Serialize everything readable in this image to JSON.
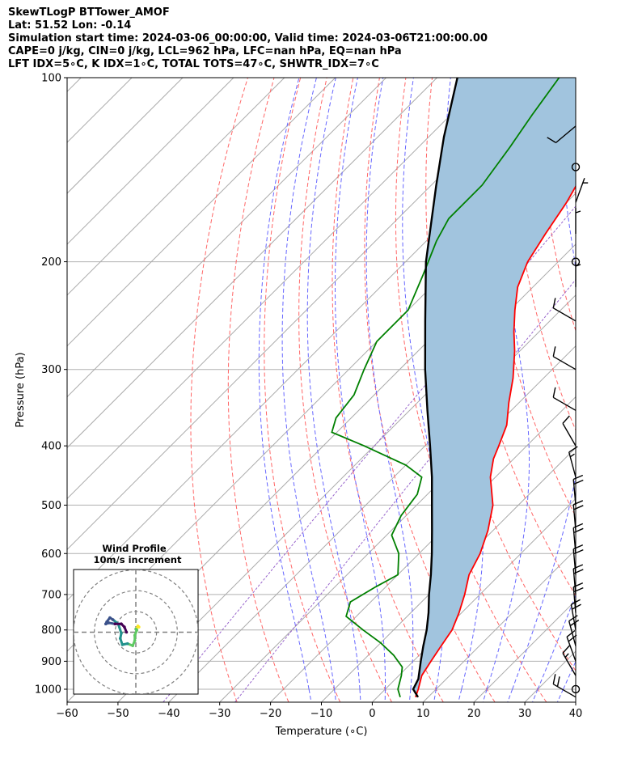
{
  "header": {
    "line1": "SkewTLogP BTTower_AMOF",
    "line2": "Lat: 51.52   Lon: -0.14",
    "line3": "Simulation start time: 2024-03-06_00:00:00, Valid time: 2024-03-06T21:00:00.00",
    "line4": "CAPE=0 j/kg, CIN=0 j/kg, LCL=962 hPa, LFC=nan hPa, EQ=nan hPa",
    "line5": "LFT IDX=5∘C, K IDX=1∘C, TOTAL TOTS=47∘C, SHWTR_IDX=7∘C"
  },
  "chart_data": [
    {
      "type": "line",
      "subtype": "skew-t log-p",
      "xlabel": "Temperature (∘C)",
      "ylabel": "Pressure (hPa)",
      "xlim": [
        -60,
        40
      ],
      "ylim": [
        1050,
        100
      ],
      "y_scale": "log",
      "x_ticks": [
        "−60",
        "−50",
        "−40",
        "−30",
        "−20",
        "−10",
        "0",
        "10",
        "20",
        "30",
        "40"
      ],
      "x_tick_values": [
        -60,
        -50,
        -40,
        -30,
        -20,
        -10,
        0,
        10,
        20,
        30,
        40
      ],
      "y_ticks": [
        "100",
        "200",
        "300",
        "400",
        "500",
        "600",
        "700",
        "800",
        "900",
        "1000"
      ],
      "y_tick_values": [
        100,
        200,
        300,
        400,
        500,
        600,
        700,
        800,
        900,
        1000
      ],
      "grid": true,
      "background_lines": {
        "dry_adiabats_color": "#ff6666",
        "moist_adiabats_color": "#6666ff",
        "skewed_isotherms_color": "#aaaaaa",
        "mixing_line_color": "#9966cc"
      },
      "cape_fill_color": "#a1c4de",
      "series": [
        {
          "role": "temperature",
          "color": "#ff0000",
          "points": [
            {
              "p": 1030,
              "t": 7.5
            },
            {
              "p": 1000,
              "t": 6.5
            },
            {
              "p": 950,
              "t": 4.5
            },
            {
              "p": 900,
              "t": 3.5
            },
            {
              "p": 850,
              "t": 2.5
            },
            {
              "p": 800,
              "t": 1.5
            },
            {
              "p": 750,
              "t": -0.5
            },
            {
              "p": 700,
              "t": -3
            },
            {
              "p": 650,
              "t": -6
            },
            {
              "p": 600,
              "t": -8
            },
            {
              "p": 550,
              "t": -11
            },
            {
              "p": 500,
              "t": -15
            },
            {
              "p": 450,
              "t": -21
            },
            {
              "p": 420,
              "t": -24
            },
            {
              "p": 400,
              "t": -25.5
            },
            {
              "p": 370,
              "t": -28
            },
            {
              "p": 340,
              "t": -32
            },
            {
              "p": 310,
              "t": -36
            },
            {
              "p": 280,
              "t": -41
            },
            {
              "p": 260,
              "t": -45
            },
            {
              "p": 240,
              "t": -49
            },
            {
              "p": 220,
              "t": -53
            },
            {
              "p": 200,
              "t": -56
            },
            {
              "p": 180,
              "t": -58
            },
            {
              "p": 160,
              "t": -60
            },
            {
              "p": 140,
              "t": -63
            },
            {
              "p": 120,
              "t": -69
            },
            {
              "p": 110,
              "t": -73
            },
            {
              "p": 100,
              "t": -77
            }
          ]
        },
        {
          "role": "dewpoint",
          "color": "#008000",
          "points": [
            {
              "p": 1030,
              "t": 4.5
            },
            {
              "p": 1000,
              "t": 2.5
            },
            {
              "p": 950,
              "t": 0.5
            },
            {
              "p": 920,
              "t": -1
            },
            {
              "p": 880,
              "t": -5
            },
            {
              "p": 840,
              "t": -10
            },
            {
              "p": 800,
              "t": -16
            },
            {
              "p": 760,
              "t": -22
            },
            {
              "p": 720,
              "t": -24
            },
            {
              "p": 680,
              "t": -22
            },
            {
              "p": 650,
              "t": -20
            },
            {
              "p": 600,
              "t": -24
            },
            {
              "p": 560,
              "t": -29
            },
            {
              "p": 520,
              "t": -31
            },
            {
              "p": 480,
              "t": -32
            },
            {
              "p": 450,
              "t": -34.5
            },
            {
              "p": 430,
              "t": -40
            },
            {
              "p": 400,
              "t": -52
            },
            {
              "p": 380,
              "t": -61
            },
            {
              "p": 360,
              "t": -63
            },
            {
              "p": 330,
              "t": -64
            },
            {
              "p": 300,
              "t": -67
            },
            {
              "p": 270,
              "t": -70
            },
            {
              "p": 240,
              "t": -70
            },
            {
              "p": 210,
              "t": -74
            },
            {
              "p": 185,
              "t": -78
            },
            {
              "p": 170,
              "t": -80
            },
            {
              "p": 150,
              "t": -80
            },
            {
              "p": 130,
              "t": -82
            },
            {
              "p": 115,
              "t": -84
            },
            {
              "p": 100,
              "t": -86
            }
          ]
        },
        {
          "role": "parcel profile",
          "color": "#000000",
          "points": [
            {
              "p": 1030,
              "t": 8
            },
            {
              "p": 1000,
              "t": 5.5
            },
            {
              "p": 962,
              "t": 4.5
            },
            {
              "p": 900,
              "t": 1.5
            },
            {
              "p": 850,
              "t": -1
            },
            {
              "p": 800,
              "t": -3.5
            },
            {
              "p": 750,
              "t": -6.5
            },
            {
              "p": 700,
              "t": -10
            },
            {
              "p": 650,
              "t": -13.5
            },
            {
              "p": 600,
              "t": -17.5
            },
            {
              "p": 550,
              "t": -22
            },
            {
              "p": 500,
              "t": -27
            },
            {
              "p": 450,
              "t": -32.5
            },
            {
              "p": 400,
              "t": -39
            },
            {
              "p": 350,
              "t": -46.5
            },
            {
              "p": 300,
              "t": -55
            },
            {
              "p": 250,
              "t": -64.5
            },
            {
              "p": 200,
              "t": -76
            },
            {
              "p": 150,
              "t": -89
            },
            {
              "p": 125,
              "t": -97
            },
            {
              "p": 100,
              "t": -106
            }
          ]
        }
      ],
      "wind_barbs": [
        {
          "p": 1030,
          "speed_kt": 20,
          "dir": 300
        },
        {
          "p": 1000,
          "speed_kt": 0,
          "dir": 0,
          "calm": true
        },
        {
          "p": 950,
          "speed_kt": 15,
          "dir": 330
        },
        {
          "p": 900,
          "speed_kt": 20,
          "dir": 340
        },
        {
          "p": 850,
          "speed_kt": 20,
          "dir": 345
        },
        {
          "p": 800,
          "speed_kt": 20,
          "dir": 350
        },
        {
          "p": 750,
          "speed_kt": 20,
          "dir": 355
        },
        {
          "p": 700,
          "speed_kt": 20,
          "dir": 355
        },
        {
          "p": 650,
          "speed_kt": 20,
          "dir": 355
        },
        {
          "p": 600,
          "speed_kt": 20,
          "dir": 355
        },
        {
          "p": 550,
          "speed_kt": 20,
          "dir": 355
        },
        {
          "p": 500,
          "speed_kt": 20,
          "dir": 355
        },
        {
          "p": 450,
          "speed_kt": 15,
          "dir": 345
        },
        {
          "p": 400,
          "speed_kt": 10,
          "dir": 330
        },
        {
          "p": 350,
          "speed_kt": 10,
          "dir": 300
        },
        {
          "p": 300,
          "speed_kt": 10,
          "dir": 300
        },
        {
          "p": 250,
          "speed_kt": 10,
          "dir": 300
        },
        {
          "p": 220,
          "speed_kt": 5,
          "dir": 360
        },
        {
          "p": 200,
          "speed_kt": 0,
          "dir": 0,
          "calm": true
        },
        {
          "p": 180,
          "speed_kt": 5,
          "dir": 360
        },
        {
          "p": 160,
          "speed_kt": 5,
          "dir": 20
        },
        {
          "p": 140,
          "speed_kt": 0,
          "dir": 0,
          "calm": true
        },
        {
          "p": 120,
          "speed_kt": 10,
          "dir": 230
        }
      ]
    },
    {
      "type": "scatter",
      "subtype": "hodograph",
      "title": "Wind Profile",
      "subtitle": "10m/s increment",
      "rings_ms": [
        10,
        20,
        30
      ],
      "xlim": [
        -30,
        30
      ],
      "ylim": [
        -30,
        30
      ],
      "colormap": [
        "#440154",
        "#3b528b",
        "#21918c",
        "#5ec962",
        "#fde725"
      ],
      "points": [
        {
          "u": 1.5,
          "v": 2.5,
          "c": 1.0
        },
        {
          "u": 1.0,
          "v": 3.0,
          "c": 0.95
        },
        {
          "u": 0.5,
          "v": 2.0,
          "c": 0.9
        },
        {
          "u": 0.0,
          "v": 1.5,
          "c": 0.86
        },
        {
          "u": 0.5,
          "v": 1.0,
          "c": 0.82
        },
        {
          "u": -0.5,
          "v": -1.5,
          "c": 0.75
        },
        {
          "u": -0.5,
          "v": -4.0,
          "c": 0.7
        },
        {
          "u": -1.5,
          "v": -6.5,
          "c": 0.65
        },
        {
          "u": -4.0,
          "v": -5.5,
          "c": 0.6
        },
        {
          "u": -6.5,
          "v": -6.0,
          "c": 0.55
        },
        {
          "u": -7.5,
          "v": -3.0,
          "c": 0.5
        },
        {
          "u": -7.0,
          "v": -0.5,
          "c": 0.45
        },
        {
          "u": -8.5,
          "v": 4.0,
          "c": 0.4
        },
        {
          "u": -11.0,
          "v": 6.0,
          "c": 0.35
        },
        {
          "u": -12.5,
          "v": 7.0,
          "c": 0.3
        },
        {
          "u": -14.0,
          "v": 5.0,
          "c": 0.25
        },
        {
          "u": -14.5,
          "v": 4.0,
          "c": 0.2
        },
        {
          "u": -13.0,
          "v": 4.5,
          "c": 0.16
        },
        {
          "u": -10.0,
          "v": 4.0,
          "c": 0.12
        },
        {
          "u": -7.0,
          "v": 4.0,
          "c": 0.08
        },
        {
          "u": -5.5,
          "v": 2.5,
          "c": 0.04
        },
        {
          "u": -4.5,
          "v": 0.0,
          "c": 0.0
        }
      ]
    }
  ]
}
